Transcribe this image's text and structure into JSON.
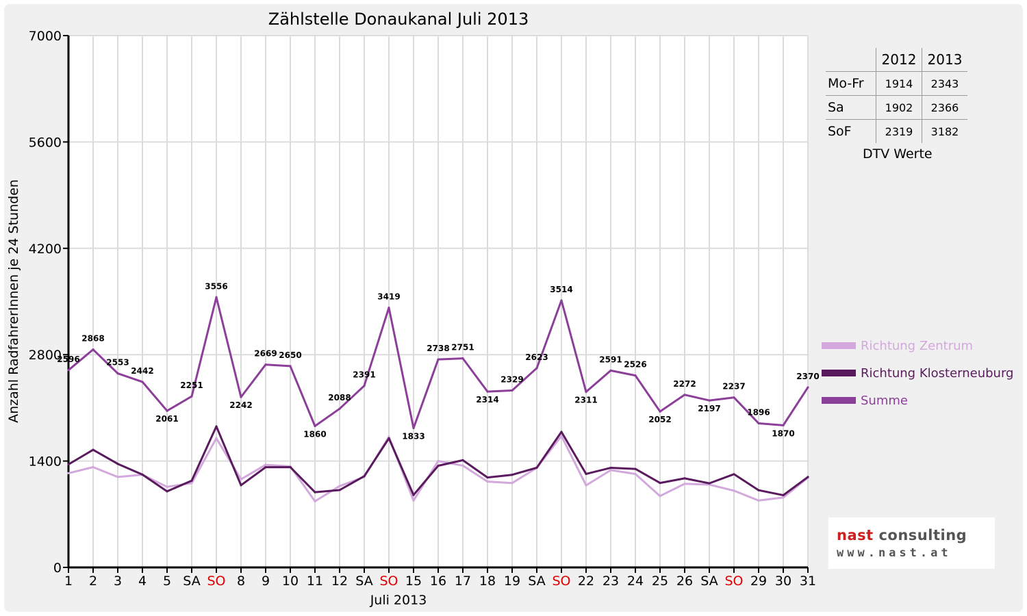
{
  "chart_data": {
    "type": "line",
    "title": "Zählstelle Donaukanal Juli 2013",
    "xlabel": "Juli 2013",
    "ylabel": "Anzahl RadfahrerInnen je 24 Stunden",
    "ylim": [
      0,
      7000
    ],
    "yticks": [
      0,
      1400,
      2800,
      4200,
      5600,
      7000
    ],
    "grid": true,
    "legend_position": "right",
    "categories": [
      "1",
      "2",
      "3",
      "4",
      "5",
      "SA",
      "SO",
      "8",
      "9",
      "10",
      "11",
      "12",
      "SA",
      "SO",
      "15",
      "16",
      "17",
      "18",
      "19",
      "SA",
      "SO",
      "22",
      "23",
      "24",
      "25",
      "26",
      "SA",
      "SO",
      "29",
      "30",
      "31"
    ],
    "category_colors": [
      "#000000",
      "#000000",
      "#000000",
      "#000000",
      "#000000",
      "#000000",
      "#dd0000",
      "#000000",
      "#000000",
      "#000000",
      "#000000",
      "#000000",
      "#000000",
      "#dd0000",
      "#000000",
      "#000000",
      "#000000",
      "#000000",
      "#000000",
      "#000000",
      "#dd0000",
      "#000000",
      "#000000",
      "#000000",
      "#000000",
      "#000000",
      "#000000",
      "#dd0000",
      "#000000",
      "#000000",
      "#000000"
    ],
    "series": [
      {
        "name": "Richtung Zentrum",
        "color": "#d3a8dc",
        "values": [
          1240,
          1320,
          1190,
          1220,
          1060,
          1110,
          1700,
          1160,
          1350,
          1330,
          870,
          1070,
          1190,
          1720,
          880,
          1400,
          1340,
          1130,
          1110,
          1310,
          1730,
          1080,
          1280,
          1230,
          940,
          1100,
          1090,
          1010,
          880,
          920,
          1180
        ]
      },
      {
        "name": "Richtung Klosterneuburg",
        "color": "#5a1a5e",
        "values": [
          1356,
          1548,
          1363,
          1222,
          1001,
          1141,
          1856,
          1082,
          1319,
          1320,
          990,
          1018,
          1201,
          1699,
          953,
          1338,
          1411,
          1184,
          1219,
          1313,
          1784,
          1231,
          1311,
          1296,
          1112,
          1172,
          1107,
          1227,
          1016,
          950,
          1190
        ]
      },
      {
        "name": "Summe",
        "color": "#8c3f98",
        "values": [
          2596,
          2868,
          2553,
          2442,
          2061,
          2251,
          3556,
          2242,
          2669,
          2650,
          1860,
          2088,
          2391,
          3419,
          1833,
          2738,
          2751,
          2314,
          2329,
          2623,
          3514,
          2311,
          2591,
          2526,
          2052,
          2272,
          2197,
          2237,
          1896,
          1870,
          2370
        ],
        "labels": [
          "2596",
          "2868",
          "2553",
          "2442",
          "2061",
          "2251",
          "3556",
          "2242",
          "2669",
          "2650",
          "1860",
          "2088",
          "2391",
          "3419",
          "1833",
          "2738",
          "2751",
          "2314",
          "2329",
          "2623",
          "3514",
          "2311",
          "2591",
          "2526",
          "2052",
          "2272",
          "2197",
          "2237",
          "1896",
          "1870",
          "2370"
        ]
      }
    ]
  },
  "dtv_table": {
    "headers": [
      "2012",
      "2013"
    ],
    "rows": [
      {
        "label": "Mo-Fr",
        "v2012": "1914",
        "v2013": "2343"
      },
      {
        "label": "Sa",
        "v2012": "1902",
        "v2013": "2366"
      },
      {
        "label": "SoF",
        "v2012": "2319",
        "v2013": "3182"
      }
    ],
    "caption": "DTV Werte"
  },
  "logo": {
    "name_part1": "nast",
    "name_part2": "consulting",
    "url": "www.nast.at"
  }
}
